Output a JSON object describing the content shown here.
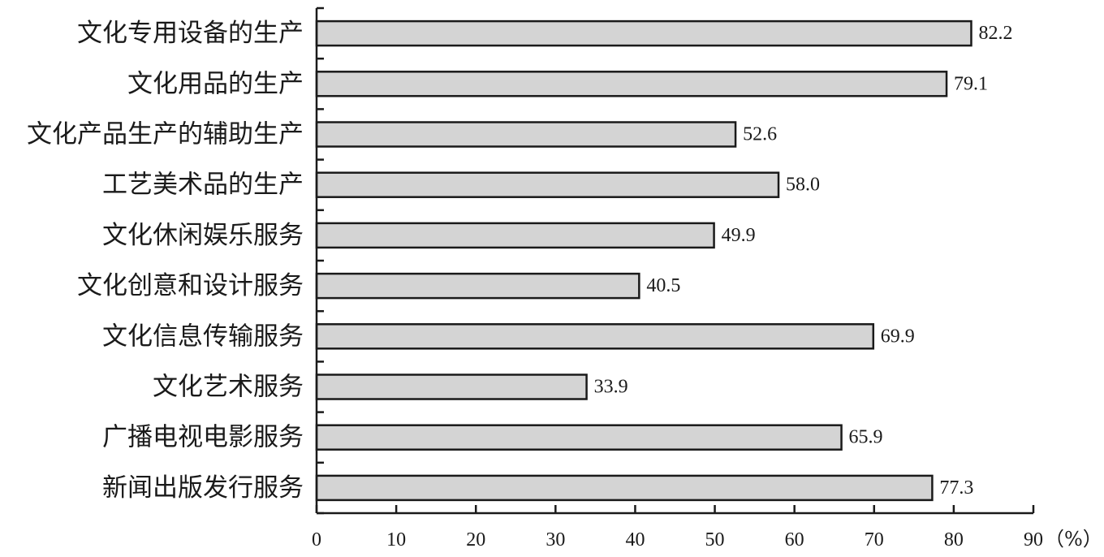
{
  "chart_data": {
    "type": "bar",
    "orientation": "horizontal",
    "categories": [
      "文化专用设备的生产",
      "文化用品的生产",
      "文化产品生产的辅助生产",
      "工艺美术品的生产",
      "文化休闲娱乐服务",
      "文化创意和设计服务",
      "文化信息传输服务",
      "文化艺术服务",
      "广播电视电影服务",
      "新闻出版发行服务"
    ],
    "values": [
      82.2,
      79.1,
      52.6,
      58.0,
      49.9,
      40.5,
      69.9,
      33.9,
      65.9,
      77.3
    ],
    "value_labels": [
      "82.2",
      "79.1",
      "52.6",
      "58.0",
      "49.9",
      "40.5",
      "69.9",
      "33.9",
      "65.9",
      "77.3"
    ],
    "xlim": [
      0,
      90
    ],
    "x_ticks": [
      0,
      10,
      20,
      30,
      40,
      50,
      60,
      70,
      80,
      90
    ],
    "x_unit": "（%）",
    "colors": {
      "bar_fill": "#d4d4d4",
      "bar_stroke": "#1a1a1a"
    },
    "grid": false,
    "legend": "none"
  }
}
